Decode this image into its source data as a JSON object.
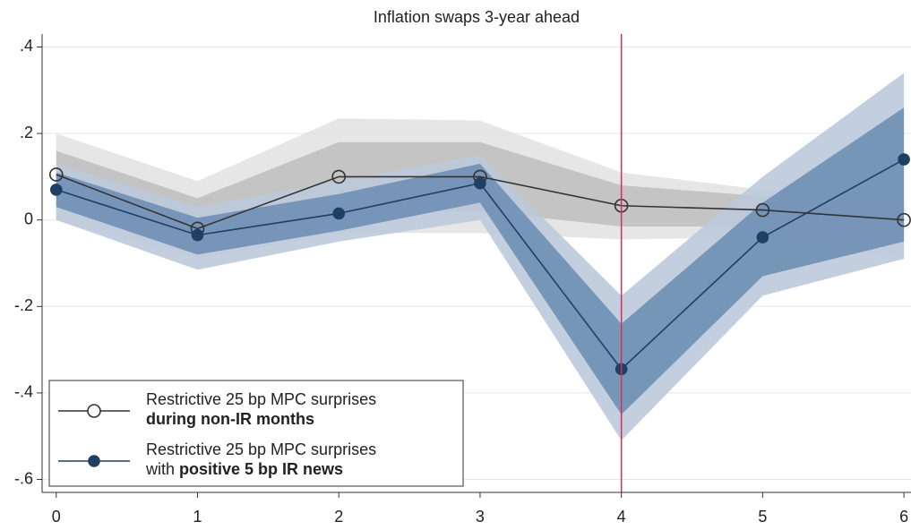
{
  "chart_data": {
    "type": "line",
    "title": "Inflation swaps 3-year ahead",
    "x": [
      0,
      1,
      2,
      3,
      4,
      5,
      6
    ],
    "xlim": [
      -0.1,
      6.05
    ],
    "xticks": [
      0,
      1,
      2,
      3,
      4,
      5,
      6
    ],
    "ylim": [
      -0.63,
      0.43
    ],
    "yticks": [
      {
        "value": 0.4,
        "label": ".4"
      },
      {
        "value": 0.2,
        "label": ".2"
      },
      0,
      {
        "value": -0.2,
        "label": "-.2"
      },
      {
        "value": -0.4,
        "label": "-.4"
      },
      {
        "value": -0.6,
        "label": "-.6"
      }
    ],
    "grid": true,
    "vline": {
      "x": 4,
      "color": "#d0305a"
    },
    "legend": "bottom-left",
    "series": [
      {
        "name": [
          [
            {
              "text": "Restrictive 25 bp MPC surprises"
            }
          ],
          [
            {
              "text": "during non-IR months",
              "bold": true
            }
          ]
        ],
        "color": "#333333",
        "marker": "hollow",
        "band_colors": [
          "#e2e2e2",
          "#bdbdbd"
        ],
        "values": [
          0.105,
          -0.02,
          0.1,
          0.1,
          0.033,
          0.023,
          0.0
        ],
        "outer_upper": [
          0.2,
          0.09,
          0.235,
          0.23,
          0.11,
          0.07,
          0.04
        ],
        "outer_lower": [
          0.0,
          -0.09,
          -0.03,
          -0.03,
          -0.045,
          -0.04,
          -0.09
        ],
        "inner_upper": [
          0.16,
          0.05,
          0.18,
          0.18,
          0.08,
          0.055,
          0.04
        ],
        "inner_lower": [
          0.05,
          -0.06,
          0.02,
          0.02,
          -0.015,
          -0.015,
          -0.04
        ]
      },
      {
        "name": [
          [
            {
              "text": "Restrictive 25 bp MPC surprises"
            }
          ],
          [
            {
              "text": "with "
            },
            {
              "text": "positive 5 bp IR news",
              "bold": true
            }
          ]
        ],
        "color": "#1f3f63",
        "marker": "filled",
        "band_colors": [
          "#bccadb",
          "#6e8fb4"
        ],
        "values": [
          0.07,
          -0.035,
          0.015,
          0.085,
          -0.345,
          -0.04,
          0.14
        ],
        "outer_upper": [
          0.13,
          0.03,
          0.09,
          0.15,
          -0.175,
          0.1,
          0.34
        ],
        "outer_lower": [
          0.0,
          -0.115,
          -0.05,
          0.0,
          -0.51,
          -0.175,
          -0.09
        ],
        "inner_upper": [
          0.11,
          0.005,
          0.06,
          0.13,
          -0.24,
          0.04,
          0.26
        ],
        "inner_lower": [
          0.03,
          -0.08,
          -0.025,
          0.04,
          -0.45,
          -0.13,
          -0.05
        ]
      }
    ]
  }
}
